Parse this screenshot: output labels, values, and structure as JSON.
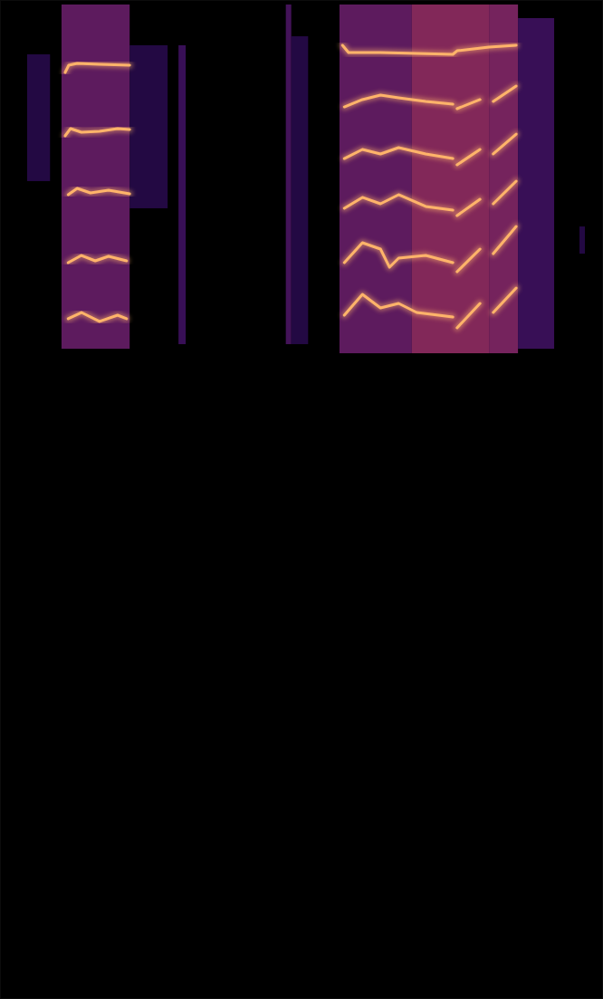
{
  "chart_data": {
    "type": "spectrogram",
    "tick_labels": false,
    "grid": false,
    "color": "#ffb46a",
    "xlim": [
      0,
      100
    ],
    "ylim": [
      0,
      100
    ],
    "cells": [
      [
        10.2,
        21.5,
        65.09,
        99.55,
        0.45
      ],
      [
        4.5,
        8.3,
        81.87,
        94.56,
        0.2
      ],
      [
        21.5,
        27.8,
        79.15,
        95.47,
        0.2
      ],
      [
        29.6,
        30.8,
        65.55,
        95.47,
        0.3
      ],
      [
        47.4,
        48.3,
        65.55,
        99.55,
        0.35
      ],
      [
        48.3,
        51.1,
        65.55,
        96.37,
        0.2
      ],
      [
        56.3,
        68.3,
        64.64,
        99.55,
        0.45
      ],
      [
        68.3,
        81.1,
        64.64,
        99.55,
        0.6
      ],
      [
        81.1,
        85.9,
        64.64,
        99.55,
        0.55
      ],
      [
        85.9,
        91.9,
        65.09,
        98.19,
        0.3
      ],
      [
        96.1,
        97.0,
        74.61,
        77.33,
        0.2
      ]
    ],
    "series": [
      {
        "x": [
          10.8,
          11.4,
          12.8,
          16.5,
          21.5
        ],
        "values": [
          92.75,
          93.47,
          93.65,
          93.56,
          93.47
        ]
      },
      {
        "x": [
          10.8,
          11.7,
          13.5,
          16.5,
          19.5,
          21.5
        ],
        "values": [
          86.4,
          87.13,
          86.76,
          86.85,
          87.13,
          87.04
        ]
      },
      {
        "x": [
          11.3,
          12.8,
          15.0,
          18.0,
          21.5
        ],
        "values": [
          80.51,
          81.14,
          80.69,
          80.96,
          80.6
        ]
      },
      {
        "x": [
          11.3,
          13.5,
          15.8,
          18.0,
          21.0
        ],
        "values": [
          73.71,
          74.43,
          73.89,
          74.34,
          73.89
        ]
      },
      {
        "x": [
          11.3,
          13.5,
          16.5,
          19.5,
          21.0
        ],
        "values": [
          68.09,
          68.72,
          67.82,
          68.45,
          68.09
        ]
      },
      {
        "x": [
          56.8,
          57.8,
          63.1,
          75.1,
          75.8,
          81.1,
          85.6
        ],
        "values": [
          95.47,
          94.74,
          94.74,
          94.56,
          94.92,
          95.29,
          95.47
        ]
      },
      {
        "x": [
          57.1,
          60.1,
          63.1,
          66.1,
          70.6,
          75.1,
          75.4,
          75.8,
          79.6,
          80.7,
          81.8,
          85.6
        ],
        "values": [
          89.3,
          90.03,
          90.48,
          90.21,
          89.85,
          89.57,
          null,
          89.12,
          90.03,
          null,
          89.85,
          91.39
        ]
      },
      {
        "x": [
          57.1,
          60.1,
          63.1,
          66.1,
          70.6,
          75.1,
          75.4,
          75.8,
          79.6,
          80.7,
          81.8,
          85.6
        ],
        "values": [
          84.13,
          85.04,
          84.59,
          85.22,
          84.59,
          84.13,
          null,
          83.5,
          85.04,
          null,
          84.59,
          86.58
        ]
      },
      {
        "x": [
          57.1,
          60.1,
          63.1,
          66.1,
          70.6,
          75.1,
          75.4,
          75.8,
          79.6,
          80.7,
          81.8,
          85.6
        ],
        "values": [
          79.15,
          80.24,
          79.6,
          80.51,
          79.33,
          78.97,
          null,
          78.42,
          80.05,
          null,
          79.6,
          81.87
        ]
      },
      {
        "x": [
          57.1,
          60.1,
          63.1,
          64.6,
          66.1,
          70.6,
          75.1,
          75.4,
          75.8,
          79.6,
          80.7,
          81.8,
          85.6
        ],
        "values": [
          73.71,
          75.7,
          75.07,
          73.25,
          74.16,
          74.43,
          73.71,
          null,
          72.8,
          75.07,
          null,
          74.61,
          77.33
        ]
      },
      {
        "x": [
          57.1,
          60.1,
          63.1,
          66.1,
          69.1,
          75.1,
          75.4,
          75.8,
          79.6,
          80.7,
          81.8,
          85.6
        ],
        "values": [
          68.45,
          70.53,
          69.18,
          69.63,
          68.72,
          68.27,
          null,
          67.18,
          69.63,
          null,
          68.72,
          71.17
        ]
      }
    ]
  }
}
